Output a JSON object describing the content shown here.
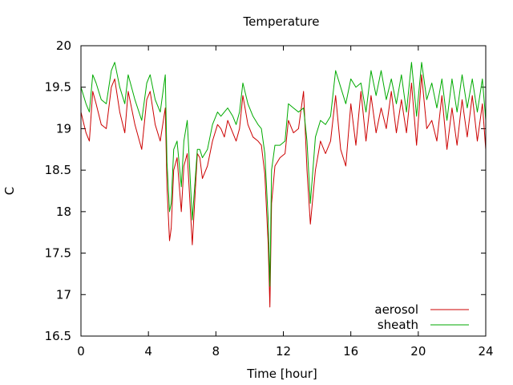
{
  "chart_data": {
    "type": "line",
    "title": "Temperature",
    "xlabel": "Time [hour]",
    "ylabel": "C",
    "xlim": [
      0,
      24
    ],
    "ylim": [
      16.5,
      20
    ],
    "xticks": [
      0,
      4,
      8,
      12,
      16,
      20,
      24
    ],
    "xtick_labels": [
      "0",
      "4",
      "8",
      "12",
      "16",
      "20",
      "24"
    ],
    "yticks": [
      16.5,
      17,
      17.5,
      18,
      18.5,
      19,
      19.5,
      20
    ],
    "ytick_labels": [
      "16.5",
      "17",
      "17.5",
      "18",
      "18.5",
      "19",
      "19.5",
      "20"
    ],
    "grid": false,
    "legend_position": "bottom-right",
    "series": [
      {
        "name": "aerosol",
        "color": "#cc0000",
        "x": [
          0,
          0.3,
          0.5,
          0.7,
          0.9,
          1.2,
          1.5,
          1.8,
          2.0,
          2.3,
          2.6,
          2.8,
          3.2,
          3.6,
          3.9,
          4.1,
          4.4,
          4.7,
          5.0,
          5.1,
          5.25,
          5.35,
          5.5,
          5.7,
          5.95,
          6.1,
          6.3,
          6.6,
          6.9,
          7.05,
          7.2,
          7.5,
          7.8,
          8.1,
          8.3,
          8.5,
          8.7,
          9.0,
          9.2,
          9.4,
          9.6,
          9.9,
          10.2,
          10.5,
          10.7,
          10.9,
          11.1,
          11.2,
          11.3,
          11.5,
          11.8,
          12.1,
          12.3,
          12.6,
          12.9,
          13.2,
          13.4,
          13.6,
          13.9,
          14.2,
          14.5,
          14.8,
          15.1,
          15.4,
          15.7,
          16.0,
          16.3,
          16.6,
          16.9,
          17.2,
          17.5,
          17.8,
          18.1,
          18.4,
          18.7,
          19.0,
          19.3,
          19.6,
          19.9,
          20.2,
          20.5,
          20.8,
          21.1,
          21.4,
          21.7,
          22.0,
          22.3,
          22.6,
          22.9,
          23.2,
          23.5,
          23.8,
          24.0
        ],
        "y": [
          19.2,
          18.95,
          18.85,
          19.45,
          19.3,
          19.05,
          19.0,
          19.5,
          19.6,
          19.2,
          18.95,
          19.45,
          19.05,
          18.75,
          19.35,
          19.45,
          19.05,
          18.85,
          19.25,
          18.3,
          17.65,
          17.8,
          18.5,
          18.65,
          18.0,
          18.55,
          18.7,
          17.6,
          18.7,
          18.65,
          18.4,
          18.55,
          18.85,
          19.05,
          19.0,
          18.9,
          19.1,
          18.95,
          18.85,
          19.0,
          19.4,
          19.05,
          18.9,
          18.85,
          18.8,
          18.45,
          17.6,
          16.85,
          18.1,
          18.55,
          18.65,
          18.7,
          19.1,
          18.95,
          19.0,
          19.45,
          18.5,
          17.85,
          18.5,
          18.85,
          18.7,
          18.85,
          19.4,
          18.75,
          18.55,
          19.3,
          18.8,
          19.45,
          18.85,
          19.4,
          18.95,
          19.25,
          19.0,
          19.45,
          18.95,
          19.35,
          18.95,
          19.55,
          18.8,
          19.65,
          19.0,
          19.1,
          18.85,
          19.4,
          18.75,
          19.25,
          18.8,
          19.35,
          18.9,
          19.4,
          18.85,
          19.3,
          18.75
        ]
      },
      {
        "name": "sheath",
        "color": "#00aa00",
        "x": [
          0,
          0.3,
          0.5,
          0.7,
          0.9,
          1.2,
          1.5,
          1.8,
          2.0,
          2.3,
          2.6,
          2.8,
          3.2,
          3.6,
          3.9,
          4.1,
          4.4,
          4.7,
          5.0,
          5.1,
          5.25,
          5.35,
          5.5,
          5.7,
          5.95,
          6.1,
          6.3,
          6.6,
          6.9,
          7.05,
          7.2,
          7.5,
          7.8,
          8.1,
          8.3,
          8.5,
          8.7,
          9.0,
          9.2,
          9.4,
          9.6,
          9.9,
          10.2,
          10.5,
          10.7,
          10.9,
          11.1,
          11.2,
          11.3,
          11.5,
          11.8,
          12.1,
          12.3,
          12.6,
          12.9,
          13.2,
          13.4,
          13.6,
          13.9,
          14.2,
          14.5,
          14.8,
          15.1,
          15.4,
          15.7,
          16.0,
          16.3,
          16.6,
          16.9,
          17.2,
          17.5,
          17.8,
          18.1,
          18.4,
          18.7,
          19.0,
          19.3,
          19.6,
          19.9,
          20.2,
          20.5,
          20.8,
          21.1,
          21.4,
          21.7,
          22.0,
          22.3,
          22.6,
          22.9,
          23.2,
          23.5,
          23.8,
          24.0
        ],
        "y": [
          19.5,
          19.3,
          19.2,
          19.65,
          19.55,
          19.35,
          19.3,
          19.7,
          19.8,
          19.5,
          19.3,
          19.65,
          19.35,
          19.1,
          19.55,
          19.65,
          19.35,
          19.2,
          19.65,
          18.6,
          18.0,
          18.1,
          18.75,
          18.85,
          18.3,
          18.85,
          19.1,
          17.9,
          18.75,
          18.75,
          18.65,
          18.75,
          19.05,
          19.2,
          19.15,
          19.2,
          19.25,
          19.15,
          19.05,
          19.2,
          19.55,
          19.3,
          19.15,
          19.05,
          19.0,
          18.7,
          17.9,
          17.1,
          18.5,
          18.8,
          18.8,
          18.85,
          19.3,
          19.25,
          19.2,
          19.25,
          18.85,
          18.1,
          18.9,
          19.1,
          19.05,
          19.15,
          19.7,
          19.5,
          19.3,
          19.6,
          19.5,
          19.55,
          19.2,
          19.7,
          19.4,
          19.7,
          19.35,
          19.6,
          19.3,
          19.65,
          19.2,
          19.8,
          19.15,
          19.8,
          19.35,
          19.55,
          19.25,
          19.6,
          19.1,
          19.6,
          19.2,
          19.65,
          19.25,
          19.6,
          19.2,
          19.6,
          19.1
        ]
      }
    ]
  }
}
